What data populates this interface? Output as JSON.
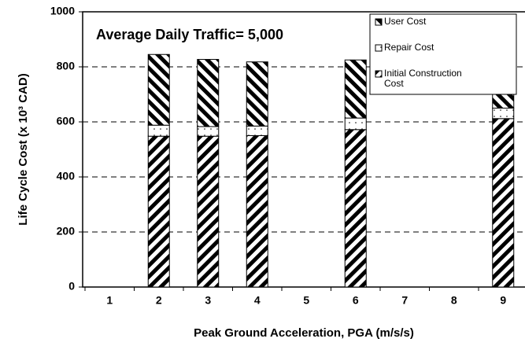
{
  "chart_data": {
    "type": "bar",
    "stacked": true,
    "annotation": "Average Daily Traffic= 5,000",
    "x_label": "Peak Ground Acceleration, PGA (m/s/s)",
    "y_label": "Life Cycle Cost (x 10³ CAD)",
    "categories": [
      "1",
      "2",
      "3",
      "4",
      "5",
      "6",
      "7",
      "8",
      "9"
    ],
    "series": [
      {
        "name": "Initial Construction Cost",
        "color": "#000000",
        "values": [
          null,
          548,
          548,
          550,
          null,
          572,
          null,
          null,
          612
        ]
      },
      {
        "name": "Repair Cost",
        "color": "#000000",
        "values": [
          null,
          40,
          35,
          35,
          null,
          42,
          null,
          null,
          38
        ]
      },
      {
        "name": "User Cost",
        "color": "#000000",
        "values": [
          null,
          257,
          244,
          233,
          null,
          211,
          null,
          null,
          172
        ]
      }
    ],
    "legend_order": [
      2,
      1,
      0
    ],
    "ylim": [
      0,
      1000
    ],
    "yticks": [
      0,
      200,
      400,
      600,
      800,
      1000
    ],
    "grid": true
  }
}
